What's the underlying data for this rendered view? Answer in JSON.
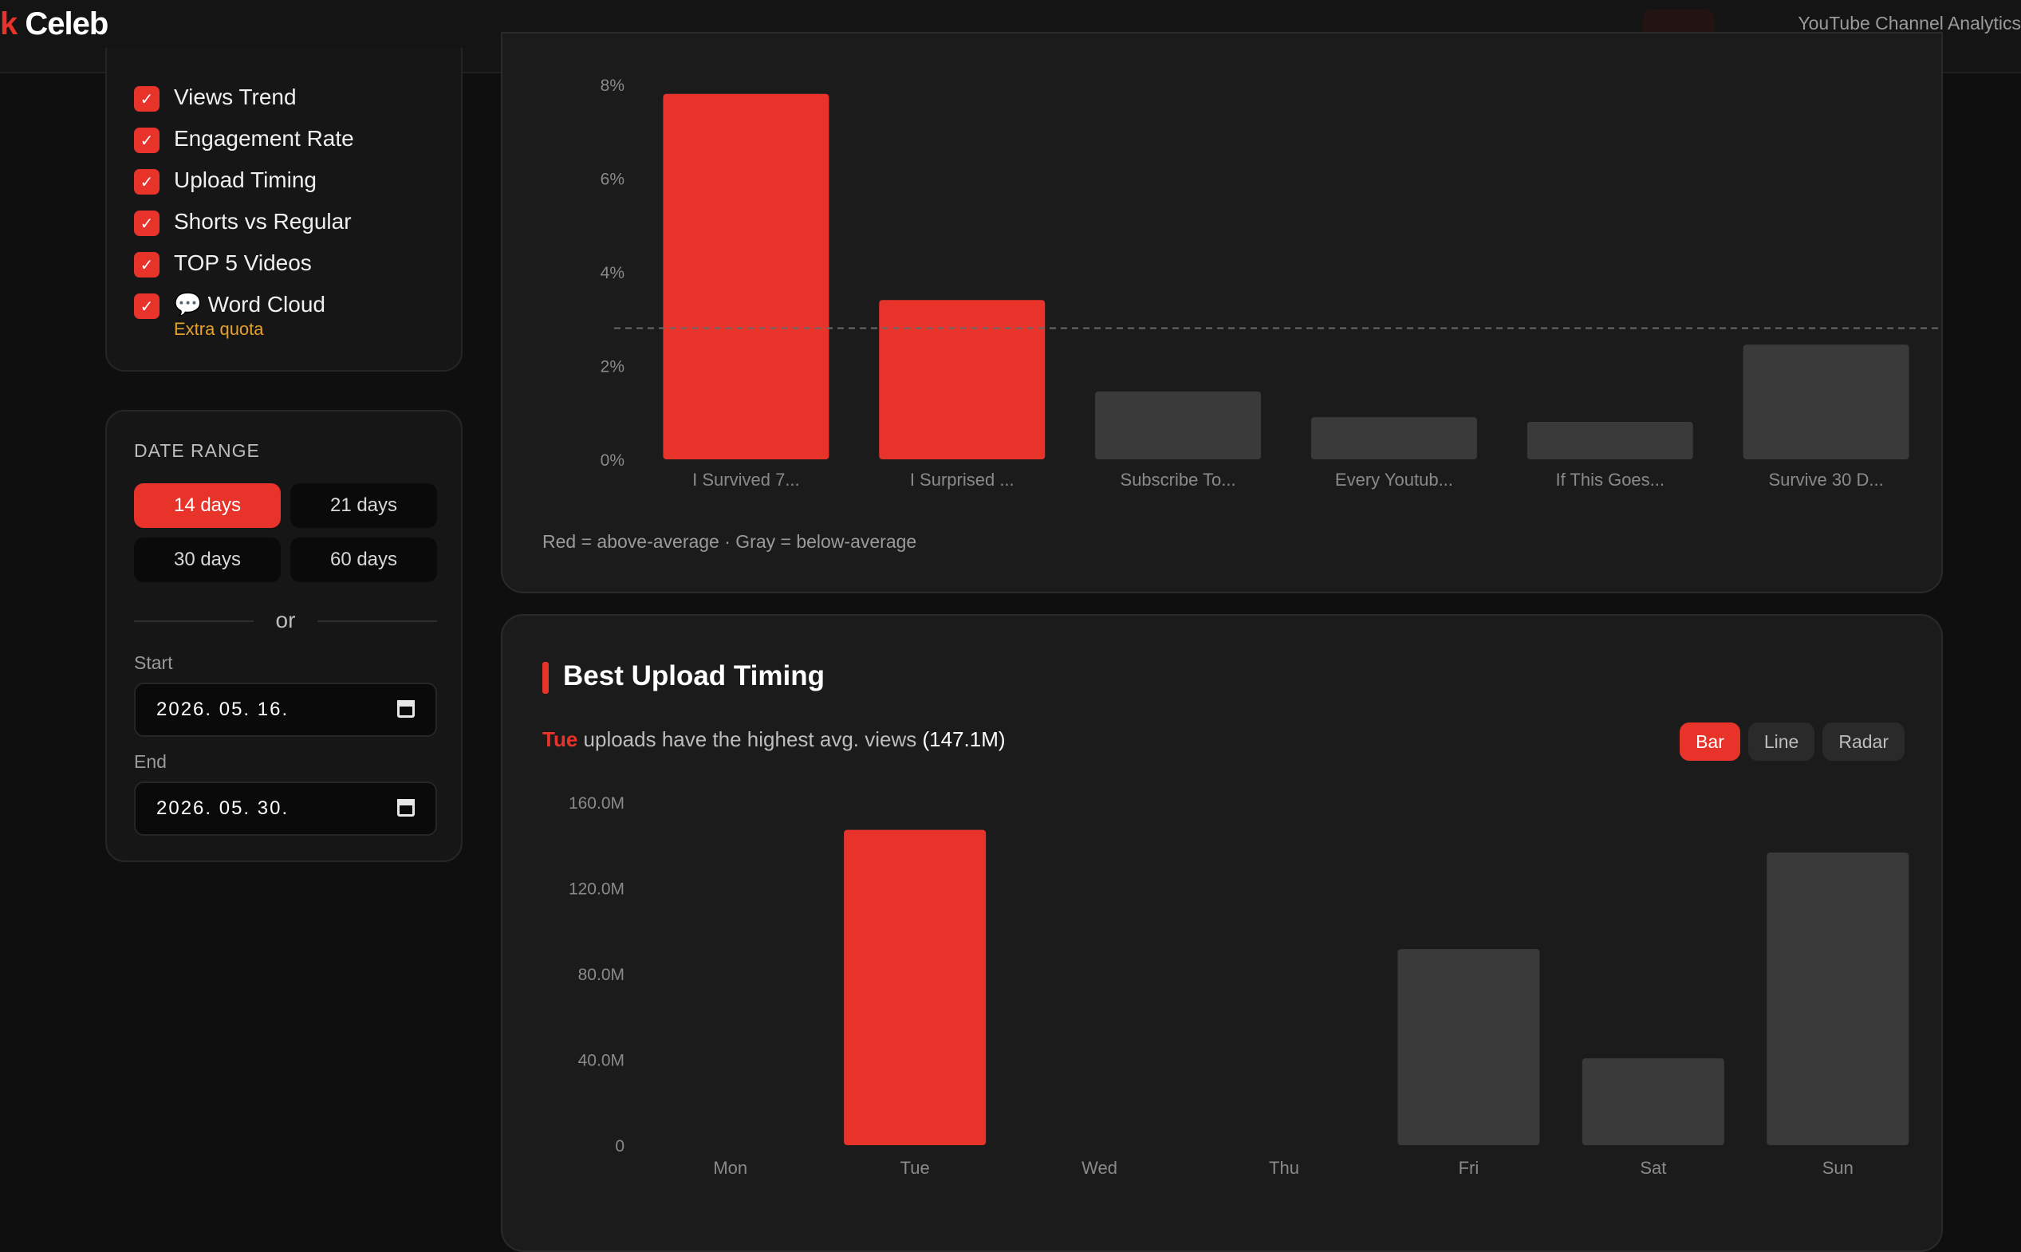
{
  "header": {
    "brand_accent": "k",
    "brand_main": "Celeb",
    "subtitle": "YouTube Channel Analytics"
  },
  "sections": [
    {
      "label": "Views Trend",
      "checked": true
    },
    {
      "label": "Engagement Rate",
      "checked": true
    },
    {
      "label": "Upload Timing",
      "checked": true
    },
    {
      "label": "Shorts vs Regular",
      "checked": true
    },
    {
      "label": "TOP 5 Videos",
      "checked": true
    },
    {
      "label": "💬 Word Cloud",
      "checked": true,
      "note": "Extra quota"
    }
  ],
  "date_range": {
    "title": "DATE RANGE",
    "presets": [
      "14 days",
      "21 days",
      "30 days",
      "60 days"
    ],
    "selected": "14 days",
    "or_label": "or",
    "start_label": "Start",
    "start_value": "2026. 05. 16.",
    "end_label": "End",
    "end_value": "2026. 05. 30."
  },
  "engagement_panel": {
    "caption": "Red = above-average · Gray = below-average"
  },
  "timing_panel": {
    "title": "Best Upload Timing",
    "insight_day": "Tue",
    "insight_text": " uploads have the highest avg. views ",
    "insight_value": "(147.1M)",
    "views": [
      "Bar",
      "Line",
      "Radar"
    ],
    "selected_view": "Bar"
  },
  "colors": {
    "accent": "#e8332a",
    "muted_bar": "#3a3a3a",
    "warning": "#e5a12b"
  },
  "chart_data": [
    {
      "type": "bar",
      "categories": [
        "I Survived 7...",
        "I Surprised ...",
        "Subscribe To...",
        "Every Youtub...",
        "If This Goes...",
        "Survive 30 D..."
      ],
      "values": [
        7.8,
        3.4,
        1.45,
        0.9,
        0.8,
        2.45
      ],
      "highlight": [
        true,
        true,
        false,
        false,
        false,
        false
      ],
      "yticks": [
        "0%",
        "2%",
        "4%",
        "6%",
        "8%"
      ],
      "ylim": [
        0,
        8
      ],
      "average": 2.8,
      "average_label": "a"
    },
    {
      "type": "bar",
      "categories": [
        "Mon",
        "Tue",
        "Wed",
        "Thu",
        "Fri",
        "Sat",
        "Sun"
      ],
      "values": [
        0,
        147.1,
        0,
        0,
        91.5,
        40.5,
        136.5
      ],
      "highlight": [
        false,
        true,
        false,
        false,
        false,
        false,
        false
      ],
      "yticks": [
        "0",
        "40.0M",
        "80.0M",
        "120.0M",
        "160.0M"
      ],
      "ylim": [
        0,
        160
      ],
      "unit": "M"
    }
  ]
}
